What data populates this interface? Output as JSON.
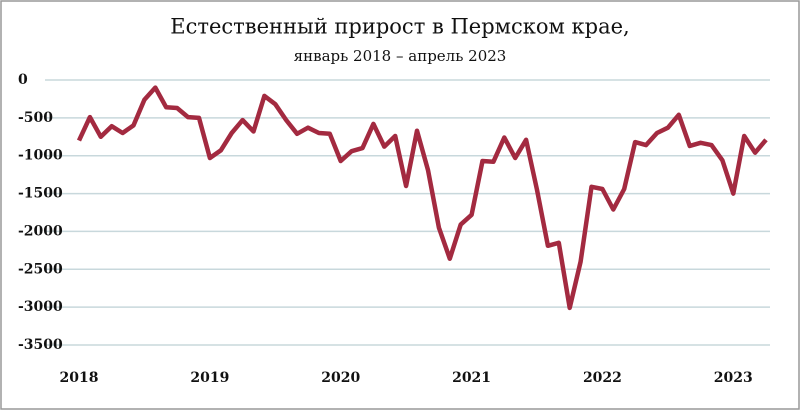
{
  "chart_data": {
    "type": "line",
    "title": "Естественный прирост в Пермском крае,",
    "subtitle": "январь 2018 – апрель 2023",
    "x": [
      2018,
      2018.0833,
      2018.1667,
      2018.25,
      2018.3333,
      2018.4167,
      2018.5,
      2018.5833,
      2018.6667,
      2018.75,
      2018.8333,
      2018.9167,
      2019,
      2019.0833,
      2019.1667,
      2019.25,
      2019.3333,
      2019.4167,
      2019.5,
      2019.5833,
      2019.6667,
      2019.75,
      2019.8333,
      2019.9167,
      2020,
      2020.0833,
      2020.1667,
      2020.25,
      2020.3333,
      2020.4167,
      2020.5,
      2020.5833,
      2020.6667,
      2020.75,
      2020.8333,
      2020.9167,
      2021,
      2021.0833,
      2021.1667,
      2021.25,
      2021.3333,
      2021.4167,
      2021.5,
      2021.5833,
      2021.6667,
      2021.75,
      2021.8333,
      2021.9167,
      2022,
      2022.0833,
      2022.1667,
      2022.25,
      2022.3333,
      2022.4167,
      2022.5,
      2022.5833,
      2022.6667,
      2022.75,
      2022.8333,
      2022.9167,
      2023,
      2023.0833,
      2023.1667,
      2023.25
    ],
    "series": [
      {
        "name": "Естественный прирост",
        "color": "#a32a40",
        "values": [
          -800,
          -490,
          -750,
          -610,
          -700,
          -600,
          -260,
          -100,
          -360,
          -370,
          -490,
          -500,
          -1030,
          -930,
          -700,
          -530,
          -680,
          -210,
          -320,
          -530,
          -710,
          -630,
          -700,
          -710,
          -1070,
          -940,
          -900,
          -580,
          -880,
          -740,
          -1400,
          -670,
          -1190,
          -1950,
          -2360,
          -1910,
          -1780,
          -1070,
          -1080,
          -760,
          -1030,
          -790,
          -1450,
          -2190,
          -2150,
          -3010,
          -2400,
          -1410,
          -1440,
          -1710,
          -1440,
          -820,
          -860,
          -700,
          -630,
          -460,
          -870,
          -830,
          -860,
          -1060,
          -1500,
          -740,
          -960,
          -790
        ]
      }
    ],
    "xlim": [
      2018,
      2023.25
    ],
    "xticks": [
      2018,
      2019,
      2020,
      2021,
      2022,
      2023
    ],
    "ylim": [
      -3500,
      0
    ],
    "yticks": [
      0,
      -500,
      -1000,
      -1500,
      -2000,
      -2500,
      -3000,
      -3500
    ],
    "grid": true
  }
}
